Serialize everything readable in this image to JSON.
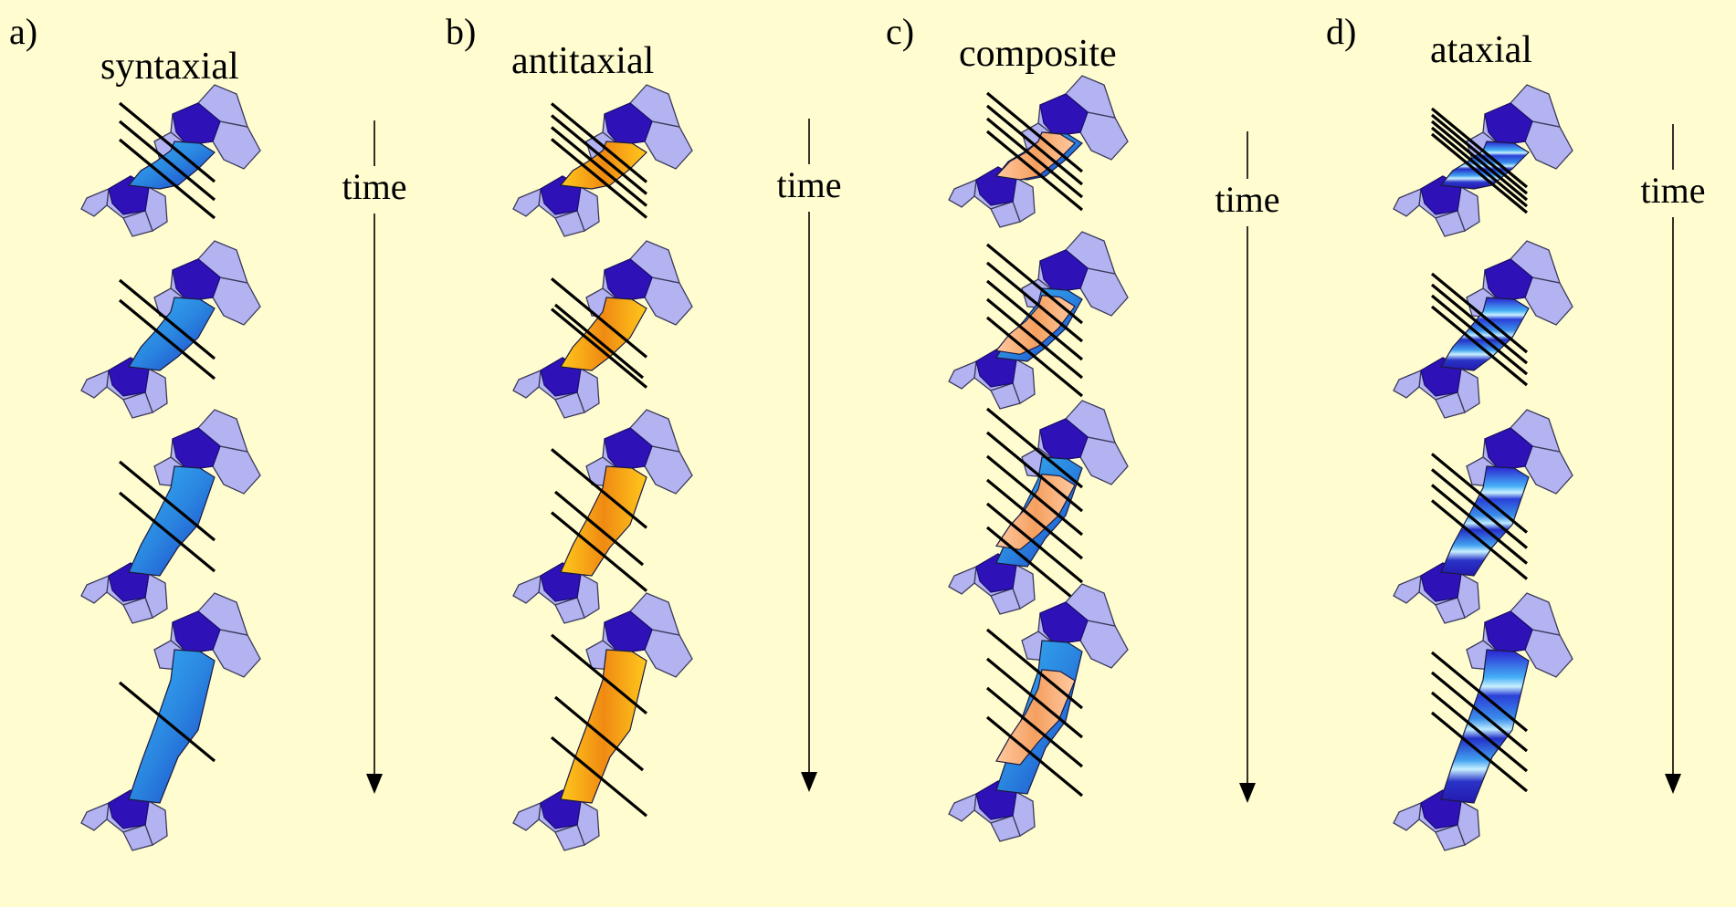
{
  "panels": [
    {
      "letter": "a)",
      "title": "syntaxial",
      "axis_label": "time",
      "vein": "blue"
    },
    {
      "letter": "b)",
      "title": "antitaxial",
      "axis_label": "time",
      "vein": "orange"
    },
    {
      "letter": "c)",
      "title": "composite",
      "axis_label": "time",
      "vein": "composite"
    },
    {
      "letter": "d)",
      "title": "ataxial",
      "axis_label": "time",
      "vein": "banded"
    }
  ],
  "stages": 4,
  "colors": {
    "background": "#FFFDD0",
    "grain": "#B3B3F2",
    "grain_edge": "#3A3A5A",
    "host_grain": "#2E12B8",
    "blue_fibre_light": "#2FA6EE",
    "blue_fibre_dark": "#1E3CC8",
    "orange_fibre_light": "#FFC21A",
    "orange_fibre_dark": "#E0530A",
    "stripe": "#BEEBFF",
    "line": "#000000"
  }
}
